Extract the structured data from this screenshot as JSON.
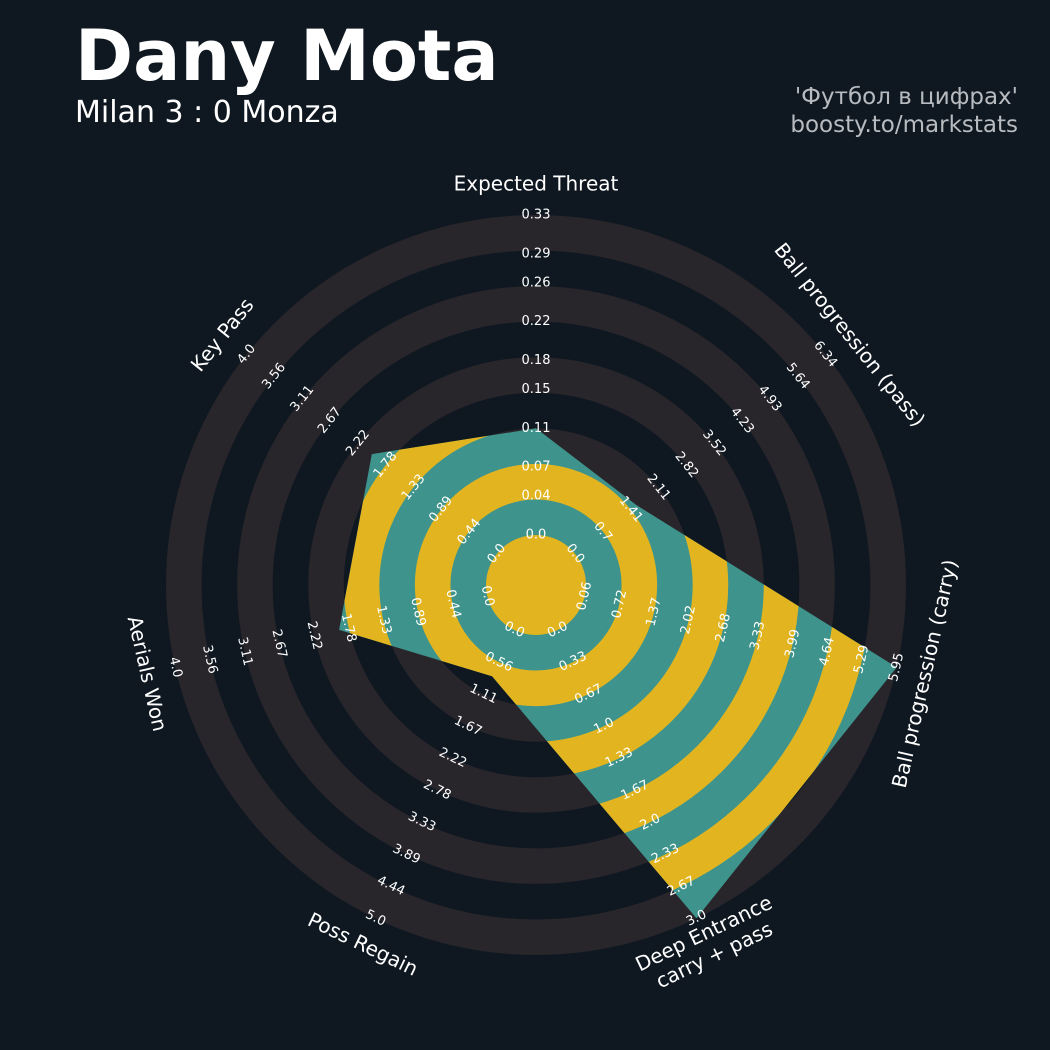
{
  "chart_data": {
    "type": "radar",
    "title": "Dany Mota",
    "subtitle": "Milan 3 : 0 Monza",
    "credits": [
      "'Футбол в цифрах'",
      "boosty.to/markstats"
    ],
    "background": "#0f1821",
    "ring_color": "#28252b",
    "axes": [
      {
        "label": [
          "Expected Threat"
        ],
        "lim": [
          0,
          0.33
        ],
        "ticks": [
          {
            "value": 0,
            "label": "0.0"
          },
          0.04,
          0.07,
          0.11,
          0.15,
          0.18,
          0.22,
          0.26,
          0.29,
          0.33
        ]
      },
      {
        "label": [
          "Ball progression (pass)"
        ],
        "lim": [
          0,
          6.34
        ],
        "ticks": [
          {
            "value": 0,
            "label": "0.0"
          },
          0.7,
          1.41,
          2.11,
          2.82,
          3.52,
          4.23,
          4.93,
          5.64,
          6.34
        ]
      },
      {
        "label": [
          "Ball progression (carry)"
        ],
        "lim": [
          0.06,
          5.95
        ],
        "ticks": [
          0.06,
          0.72,
          1.37,
          2.02,
          2.68,
          3.33,
          3.99,
          4.64,
          5.29,
          5.95
        ]
      },
      {
        "label": [
          "Deep Entrance",
          "carry + pass"
        ],
        "lim": [
          0,
          3
        ],
        "ticks": [
          {
            "value": 0,
            "label": "0.0"
          },
          0.33,
          0.67,
          {
            "value": 1,
            "label": "1.0"
          },
          1.33,
          1.67,
          {
            "value": 2,
            "label": "2.0"
          },
          2.33,
          2.67,
          {
            "value": 3,
            "label": "3.0"
          }
        ]
      },
      {
        "label": [
          "Poss Regain"
        ],
        "lim": [
          0,
          5
        ],
        "ticks": [
          {
            "value": 0,
            "label": "0.0"
          },
          0.56,
          1.11,
          1.67,
          2.22,
          2.78,
          3.33,
          3.89,
          4.44,
          {
            "value": 5,
            "label": "5.0"
          }
        ]
      },
      {
        "label": [
          "Aerials Won"
        ],
        "lim": [
          0,
          4
        ],
        "ticks": [
          {
            "value": 0,
            "label": "0.0"
          },
          0.44,
          0.89,
          1.33,
          1.78,
          2.22,
          2.67,
          3.11,
          3.56,
          {
            "value": 4,
            "label": "4.0"
          }
        ]
      },
      {
        "label": [
          "Key Pass"
        ],
        "lim": [
          0,
          4
        ],
        "ticks": [
          {
            "value": 0,
            "label": "0.0"
          },
          0.44,
          0.89,
          1.33,
          1.78,
          2.22,
          2.67,
          3.11,
          3.56,
          {
            "value": 4,
            "label": "4.0"
          }
        ]
      }
    ],
    "series": [
      {
        "color": "#3e948c",
        "ring_color": "#e2b520",
        "values": [
          0.11,
          1.55,
          5.95,
          3.0,
          0.8,
          1.9,
          2.0
        ]
      }
    ]
  }
}
